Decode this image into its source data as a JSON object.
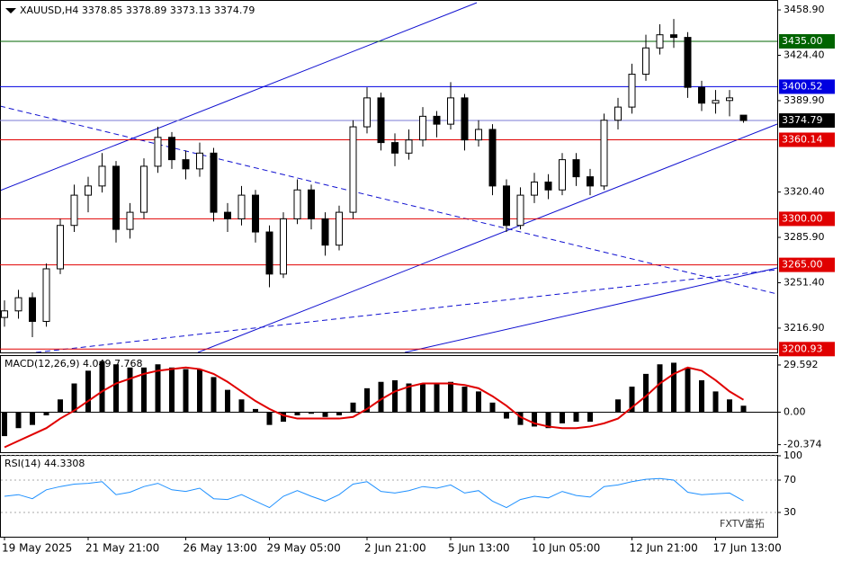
{
  "chart_data": [
    {
      "type": "candlestick",
      "title": "XAUUSD,H4  3378.85 3378.89 3373.13 3374.79",
      "categories": [
        "19 May 2025",
        null,
        null,
        null,
        null,
        null,
        "21 May 21:00",
        null,
        null,
        null,
        null,
        null,
        null,
        "26 May 13:00",
        null,
        null,
        null,
        null,
        null,
        "29 May 05:00",
        null,
        null,
        null,
        null,
        null,
        null,
        "2 Jun 21:00",
        null,
        null,
        null,
        null,
        null,
        "5 Jun 13:00",
        null,
        null,
        null,
        null,
        null,
        "10 Jun 05:00",
        null,
        null,
        null,
        null,
        null,
        null,
        "12 Jun 21:00",
        null,
        null,
        null,
        null,
        null,
        "17 Jun 13:00",
        null,
        null
      ],
      "open": [
        3225,
        3230,
        3240,
        3222,
        3262,
        3295,
        3318,
        3325,
        3340,
        3292,
        3305,
        3340,
        3362,
        3345,
        3338,
        3350,
        3305,
        3300,
        3318,
        3290,
        3258,
        3300,
        3322,
        3300,
        3280,
        3305,
        3370,
        3392,
        3358,
        3350,
        3360,
        3378,
        3372,
        3392,
        3360,
        3368,
        3325,
        3295,
        3318,
        3328,
        3322,
        3345,
        3332,
        3325,
        3375,
        3385,
        3410,
        3430,
        3440,
        3438,
        3400,
        3388,
        3390,
        3378.85
      ],
      "high": [
        3238,
        3246,
        3244,
        3266,
        3300,
        3326,
        3332,
        3350,
        3344,
        3312,
        3346,
        3370,
        3366,
        3352,
        3358,
        3354,
        3312,
        3325,
        3322,
        3295,
        3305,
        3330,
        3326,
        3305,
        3310,
        3375,
        3400,
        3396,
        3365,
        3368,
        3385,
        3382,
        3404,
        3395,
        3375,
        3372,
        3330,
        3324,
        3335,
        3334,
        3350,
        3350,
        3338,
        3380,
        3392,
        3418,
        3440,
        3448,
        3452,
        3442,
        3405,
        3398,
        3398,
        3378.89
      ],
      "low": [
        3218,
        3224,
        3210,
        3218,
        3258,
        3290,
        3305,
        3320,
        3282,
        3285,
        3300,
        3335,
        3338,
        3330,
        3332,
        3298,
        3290,
        3295,
        3282,
        3248,
        3255,
        3296,
        3292,
        3272,
        3276,
        3300,
        3365,
        3352,
        3340,
        3345,
        3355,
        3362,
        3368,
        3352,
        3355,
        3318,
        3290,
        3292,
        3312,
        3315,
        3318,
        3325,
        3318,
        3322,
        3368,
        3380,
        3405,
        3425,
        3430,
        3392,
        3382,
        3380,
        3378,
        3373.13
      ],
      "close": [
        3230,
        3240,
        3222,
        3262,
        3295,
        3318,
        3325,
        3340,
        3292,
        3305,
        3340,
        3362,
        3345,
        3338,
        3350,
        3305,
        3300,
        3318,
        3290,
        3258,
        3300,
        3322,
        3300,
        3280,
        3305,
        3370,
        3392,
        3358,
        3350,
        3360,
        3378,
        3372,
        3392,
        3360,
        3368,
        3325,
        3295,
        3318,
        3328,
        3322,
        3345,
        3332,
        3325,
        3375,
        3385,
        3410,
        3430,
        3440,
        3438,
        3400,
        3388,
        3390,
        3392,
        3374.79
      ],
      "up_color": "#ffffff",
      "down_color": "#000000",
      "ylim": [
        3198.4,
        3464.4
      ],
      "yticks": [
        {
          "value": 3458.9,
          "label": "3458.90"
        },
        {
          "value": 3424.4,
          "label": "3424.40"
        },
        {
          "value": 3389.9,
          "label": "3389.90"
        },
        {
          "value": 3320.4,
          "label": "3320.40"
        },
        {
          "value": 3285.9,
          "label": "3285.90"
        },
        {
          "value": 3251.4,
          "label": "3251.40"
        },
        {
          "value": 3216.9,
          "label": "3216.90"
        }
      ],
      "levels": [
        {
          "value": 3435,
          "label": "3435.00",
          "color": "#006400"
        },
        {
          "value": 3400.52,
          "label": "3400.52",
          "color": "#0000e0"
        },
        {
          "value": 3374.79,
          "label": "3374.79",
          "color": "#000000",
          "line_color": "#7b7bd6"
        },
        {
          "value": 3360.14,
          "label": "3360.14",
          "color": "#e00000"
        },
        {
          "value": 3300,
          "label": "3300.00",
          "color": "#e00000"
        },
        {
          "value": 3265,
          "label": "3265.00",
          "color": "#e00000"
        },
        {
          "value": 3200.93,
          "label": "3200.93",
          "color": "#e00000"
        }
      ]
    },
    {
      "type": "macd",
      "title": "MACD(12,26,9) 4.049 7.768",
      "values": [
        -15,
        -10,
        -8,
        -2,
        8,
        18,
        26,
        32,
        30,
        28,
        28,
        30,
        28,
        27,
        27,
        22,
        14,
        8,
        2,
        -8,
        -6,
        -2,
        -1,
        -3,
        -2,
        6,
        15,
        19,
        20,
        18,
        18,
        18,
        19,
        16,
        13,
        6,
        -4,
        -8,
        -9,
        -10,
        -7,
        -6,
        -6,
        0,
        8,
        16,
        24,
        30,
        31,
        28,
        20,
        13,
        8,
        4.049
      ],
      "color": "#000000",
      "signal": [
        -22,
        -18,
        -14,
        -10,
        -4,
        1,
        7,
        13,
        18,
        21,
        24,
        26,
        27,
        28,
        27,
        24,
        19,
        13,
        7,
        2,
        -2,
        -4,
        -4,
        -4,
        -4,
        -3,
        2,
        8,
        13,
        16,
        18,
        18,
        18,
        17,
        15,
        10,
        4,
        -3,
        -7,
        -9,
        -10,
        -10,
        -9,
        -7,
        -4,
        3,
        10,
        18,
        24,
        28,
        26,
        20,
        13,
        7.768
      ],
      "signal_color": "#e00000",
      "ylim": [
        -25.1,
        35.2
      ],
      "yticks": [
        29.592,
        {
          "value": 0,
          "label": "0.00"
        },
        -20.374
      ]
    },
    {
      "type": "line",
      "title": "RSI(14) 44.3308",
      "values": [
        50,
        52,
        47,
        58,
        62,
        65,
        66,
        68,
        52,
        55,
        62,
        66,
        58,
        56,
        60,
        47,
        46,
        52,
        44,
        36,
        50,
        57,
        50,
        44,
        52,
        65,
        68,
        56,
        54,
        57,
        62,
        60,
        64,
        54,
        57,
        44,
        36,
        46,
        50,
        48,
        56,
        51,
        49,
        62,
        64,
        68,
        71,
        72,
        70,
        55,
        52,
        53,
        54,
        44.3308
      ],
      "color": "#1e90ff",
      "ylim": [
        0,
        100
      ],
      "yticks": [
        100,
        70,
        30
      ],
      "grid": true
    }
  ],
  "watermark": "FXTV富拓"
}
